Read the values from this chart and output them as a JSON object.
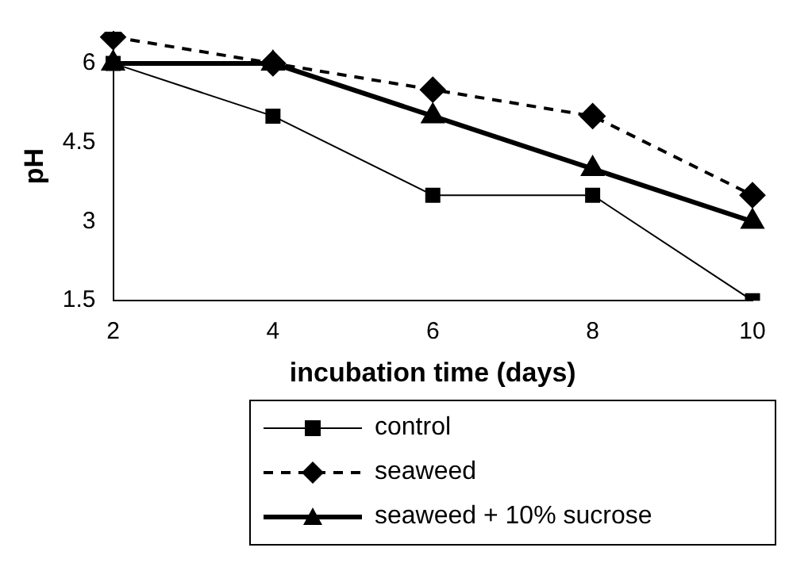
{
  "chart_data": {
    "type": "line",
    "xlabel": "incubation time (days)",
    "ylabel": "pH",
    "categories": [
      "2",
      "4",
      "6",
      "8",
      "10"
    ],
    "ylim": [
      1.5,
      6.6
    ],
    "yticks": [
      1.5,
      3,
      4.5,
      6
    ],
    "grid": false,
    "legend": "bottom",
    "series": [
      {
        "name": "control",
        "color": "#000000",
        "values": [
          6,
          5,
          3.5,
          3.5,
          1.5
        ],
        "marker": "square",
        "line_style": "solid"
      },
      {
        "name": "seaweed",
        "color": "#000000",
        "values": [
          6.5,
          6,
          5.5,
          5,
          3.5
        ],
        "marker": "diamond",
        "line_style": "dashed"
      },
      {
        "name": "seaweed + 10% sucrose",
        "color": "#000000",
        "values": [
          6,
          6,
          5,
          4,
          3
        ],
        "marker": "triangle",
        "line_style": "solid"
      }
    ]
  }
}
